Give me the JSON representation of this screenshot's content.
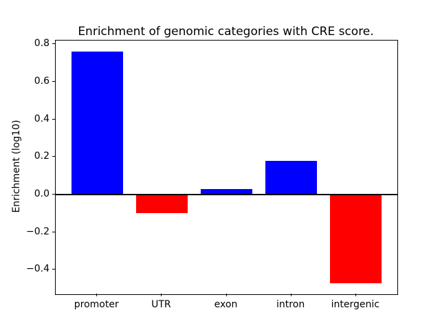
{
  "figure": {
    "background": "#ffffff"
  },
  "chart_data": {
    "type": "bar",
    "title": "Enrichment of genomic categories with CRE score.",
    "xlabel": "",
    "ylabel": "Enrichment (log10)",
    "categories": [
      "promoter",
      "UTR",
      "exon",
      "intron",
      "intergenic"
    ],
    "values": [
      0.76,
      -0.1,
      0.03,
      0.18,
      -0.47
    ],
    "bar_colors": [
      "#0000ff",
      "#ff0000",
      "#0000ff",
      "#0000ff",
      "#ff0000"
    ],
    "positive_color": "#0000ff",
    "negative_color": "#ff0000",
    "axis_color": "#000000",
    "ylim": [
      -0.53,
      0.82
    ],
    "yticks": [
      -0.4,
      -0.2,
      0.0,
      0.2,
      0.4,
      0.6,
      0.8
    ],
    "ytick_labels": [
      "−0.4",
      "−0.2",
      "0.0",
      "0.2",
      "0.4",
      "0.6",
      "0.8"
    ],
    "grid": false,
    "legend": null,
    "zero_line": true,
    "bar_width_fraction": 0.8,
    "x_margin": 0.64
  }
}
